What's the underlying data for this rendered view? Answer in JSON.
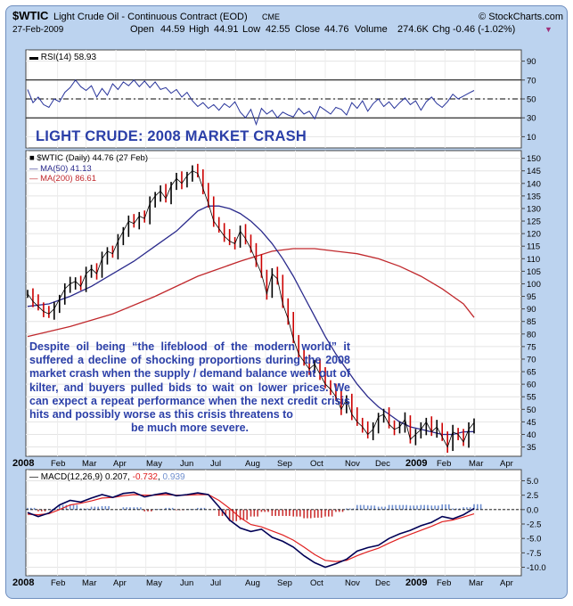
{
  "header": {
    "symbol": "$WTIC",
    "name": "Light Crude Oil - Continuous Contract (EOD)",
    "exchange": "CME",
    "copyright": "© StockCharts.com",
    "date": "27-Feb-2009",
    "open_label": "Open",
    "open": "44.59",
    "high_label": "High",
    "high": "44.91",
    "low_label": "Low",
    "low": "42.55",
    "close_label": "Close",
    "close": "44.76",
    "volume_label": "Volume",
    "volume": "274.6K",
    "chg_label": "Chg",
    "chg": "-0.46 (-1.02%)",
    "chg_arrow": "▼"
  },
  "headline": "LIGHT CRUDE: 2008 MARKET CRASH",
  "annotation": {
    "body": "Despite oil being “the lifeblood of the modern world” it suffered a decline of shocking proportions during the 2008 market crash when the supply / demand balance went out of kilter, and buyers pulled bids to wait on lower prices. We can expect a repeat performance when the next credit crisis hits and possibly worse as this crisis threatens to",
    "last_line": "be much more severe."
  },
  "colors": {
    "panel_bg": "#bcd3ef",
    "price": "#000000",
    "down_bar": "#cc0000",
    "ma50": "#2a2a8c",
    "ma200": "#c0282c",
    "rsi": "#27339a",
    "macd": "#000055",
    "signal": "#e02020",
    "hist": "#6f8fcf",
    "hist_neg": "#cc3333",
    "text_blue": "#2b3fa8"
  },
  "chart_data": [
    {
      "type": "line",
      "name": "rsi-panel",
      "legend": "RSI(14) 58.93",
      "ylim": [
        0,
        100
      ],
      "yticks": [
        "90",
        "70",
        "50",
        "30",
        "10"
      ],
      "levels": [
        70,
        50,
        30
      ],
      "series": [
        {
          "name": "RSI(14)",
          "x": [
            0,
            5,
            10,
            15,
            20,
            25,
            30,
            35,
            40,
            45,
            50,
            55,
            60,
            65,
            70,
            75,
            80,
            85,
            90,
            95,
            100,
            105,
            110,
            115,
            120,
            125,
            130,
            135,
            140,
            145,
            150,
            155,
            160,
            165,
            170,
            175,
            180,
            185,
            190,
            195,
            200,
            205,
            210,
            215,
            220,
            225,
            230,
            235,
            240,
            245,
            250,
            255,
            260,
            265,
            270,
            275,
            280,
            285,
            290,
            295,
            300,
            305,
            310,
            315,
            320,
            325,
            330,
            335,
            340,
            345,
            350,
            355,
            360,
            365,
            370,
            375,
            380,
            385,
            390,
            395,
            400,
            405,
            410,
            415,
            420
          ],
          "values": [
            60,
            46,
            52,
            44,
            41,
            50,
            47,
            57,
            62,
            70,
            63,
            59,
            64,
            52,
            61,
            54,
            66,
            60,
            68,
            64,
            70,
            63,
            69,
            62,
            68,
            60,
            62,
            56,
            60,
            52,
            57,
            48,
            42,
            46,
            40,
            44,
            38,
            45,
            41,
            47,
            36,
            30,
            39,
            23,
            40,
            34,
            38,
            30,
            36,
            33,
            31,
            40,
            34,
            37,
            29,
            42,
            38,
            34,
            41,
            39,
            33,
            46,
            40,
            48,
            37,
            45,
            50,
            42,
            47,
            40,
            46,
            51,
            44,
            48,
            38,
            47,
            52,
            45,
            41,
            47,
            55,
            50,
            53,
            56,
            59
          ]
        }
      ]
    },
    {
      "type": "line",
      "name": "price-panel",
      "legend": [
        "$WTIC (Daily) 44.76 (27 Feb)",
        "MA(50) 41.13",
        "MA(200) 86.61"
      ],
      "ylim": [
        32,
        152
      ],
      "yticks": [
        150,
        145,
        140,
        135,
        130,
        125,
        120,
        115,
        110,
        105,
        100,
        95,
        90,
        85,
        80,
        75,
        70,
        65,
        60,
        55,
        50,
        45,
        40,
        35
      ],
      "series": [
        {
          "name": "$WTIC",
          "x": [
            0,
            5,
            10,
            15,
            20,
            25,
            30,
            35,
            40,
            45,
            50,
            55,
            60,
            65,
            70,
            75,
            80,
            85,
            90,
            95,
            100,
            105,
            110,
            115,
            120,
            125,
            130,
            135,
            140,
            145,
            150,
            155,
            160,
            165,
            170,
            175,
            180,
            185,
            190,
            195,
            200,
            205,
            210,
            215,
            220,
            225,
            230,
            235,
            240,
            245,
            250,
            255,
            260,
            265,
            270,
            275,
            280,
            285,
            290,
            295,
            300,
            305,
            310,
            315,
            320,
            325,
            330,
            335,
            340,
            345,
            350,
            355,
            360,
            365,
            370,
            375,
            380,
            385,
            390,
            395,
            400,
            405,
            410,
            415,
            420
          ],
          "values": [
            96,
            93,
            91,
            89,
            88,
            90,
            94,
            98,
            100,
            101,
            99,
            104,
            106,
            104,
            110,
            113,
            112,
            117,
            121,
            125,
            124,
            127,
            126,
            132,
            135,
            137,
            134,
            139,
            142,
            140,
            143,
            145,
            144,
            138,
            132,
            125,
            122,
            119,
            117,
            116,
            121,
            118,
            114,
            109,
            104,
            96,
            104,
            102,
            92,
            86,
            78,
            72,
            69,
            66,
            68,
            64,
            60,
            58,
            55,
            50,
            54,
            48,
            45,
            43,
            40,
            42,
            47,
            48,
            44,
            42,
            43,
            46,
            38,
            40,
            42,
            45,
            41,
            43,
            39,
            35,
            41,
            40,
            37,
            42,
            44.76
          ]
        },
        {
          "name": "MA(50)",
          "x": [
            0,
            20,
            40,
            60,
            80,
            100,
            120,
            140,
            150,
            160,
            170,
            180,
            190,
            200,
            210,
            220,
            230,
            240,
            250,
            260,
            270,
            280,
            290,
            300,
            310,
            320,
            330,
            340,
            350,
            360,
            370,
            380,
            390,
            400,
            410,
            420
          ],
          "values": [
            91,
            92,
            95,
            99,
            104,
            109,
            115,
            121,
            125,
            129,
            131,
            131,
            130,
            128,
            125,
            121,
            116,
            110,
            103,
            95,
            87,
            79,
            72,
            66,
            60,
            55,
            51,
            48,
            45,
            43,
            42,
            41,
            40,
            40,
            41,
            41.13
          ]
        },
        {
          "name": "MA(200)",
          "x": [
            0,
            40,
            80,
            120,
            160,
            200,
            230,
            250,
            270,
            290,
            310,
            330,
            350,
            370,
            390,
            400,
            410,
            420
          ],
          "values": [
            79,
            83,
            88,
            95,
            103,
            109,
            113,
            114,
            114,
            113,
            112,
            110,
            107,
            103,
            98,
            95,
            92,
            86.61
          ]
        }
      ]
    },
    {
      "type": "line",
      "name": "macd-panel",
      "legend": [
        "MACD(12,26,9)",
        "0.207",
        "-0.732",
        "0.939"
      ],
      "ylim": [
        -11,
        6
      ],
      "yticks": [
        "5.0",
        "2.5",
        "0.0",
        "-2.5",
        "-5.0",
        "-7.5",
        "-10.0"
      ],
      "series": [
        {
          "name": "MACD",
          "x": [
            0,
            10,
            20,
            30,
            40,
            50,
            60,
            70,
            80,
            90,
            100,
            110,
            120,
            130,
            140,
            150,
            160,
            170,
            180,
            190,
            200,
            210,
            220,
            230,
            240,
            250,
            260,
            270,
            280,
            290,
            300,
            310,
            320,
            330,
            340,
            350,
            360,
            370,
            380,
            390,
            400,
            410,
            420
          ],
          "values": [
            -0.5,
            -1.2,
            -0.6,
            0.8,
            1.6,
            1.3,
            2.0,
            2.6,
            2.1,
            2.8,
            3.0,
            2.2,
            2.6,
            2.9,
            2.4,
            2.6,
            2.9,
            2.6,
            0.5,
            -1.8,
            -3.2,
            -3.8,
            -3.4,
            -4.8,
            -5.5,
            -6.5,
            -8.0,
            -9.2,
            -10.0,
            -9.4,
            -8.6,
            -7.2,
            -6.6,
            -6.2,
            -5.0,
            -4.2,
            -3.6,
            -2.8,
            -2.2,
            -1.2,
            -1.6,
            -0.9,
            0.207
          ]
        },
        {
          "name": "Signal",
          "x": [
            0,
            10,
            20,
            30,
            40,
            50,
            60,
            70,
            80,
            90,
            100,
            110,
            120,
            130,
            140,
            150,
            160,
            170,
            180,
            190,
            200,
            210,
            220,
            230,
            240,
            250,
            260,
            270,
            280,
            290,
            300,
            310,
            320,
            330,
            340,
            350,
            360,
            370,
            380,
            390,
            400,
            410,
            420
          ],
          "values": [
            -0.8,
            -0.9,
            -0.7,
            0.0,
            0.8,
            1.1,
            1.5,
            2.0,
            2.1,
            2.4,
            2.6,
            2.5,
            2.5,
            2.6,
            2.5,
            2.5,
            2.6,
            2.6,
            1.6,
            0.2,
            -1.4,
            -2.6,
            -3.0,
            -3.7,
            -4.4,
            -5.3,
            -6.5,
            -7.8,
            -8.8,
            -9.0,
            -8.8,
            -8.0,
            -7.3,
            -6.7,
            -5.8,
            -5.0,
            -4.3,
            -3.6,
            -2.9,
            -2.1,
            -1.8,
            -1.3,
            -0.732
          ]
        }
      ]
    }
  ],
  "x_axis": {
    "labels": [
      "2008",
      "Feb",
      "Mar",
      "Apr",
      "May",
      "Jun",
      "Jul",
      "Aug",
      "Sep",
      "Oct",
      "Nov",
      "Dec",
      "2009",
      "Feb",
      "Mar",
      "Apr"
    ],
    "bold": [
      "2008",
      "2009"
    ]
  }
}
